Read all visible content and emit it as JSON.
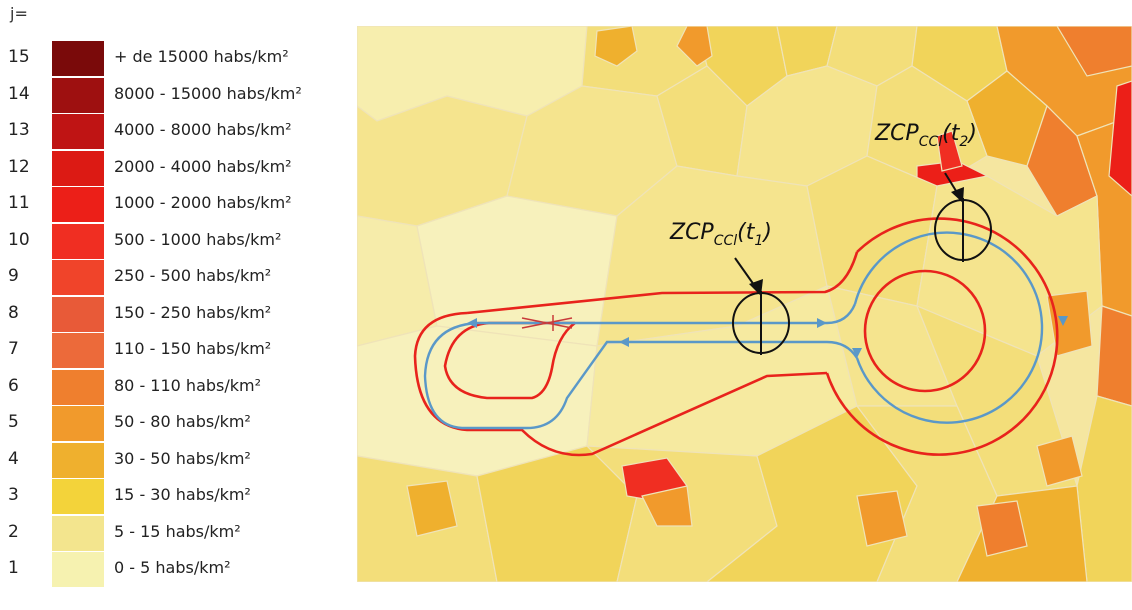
{
  "legend": {
    "title": "j=",
    "items": [
      {
        "j": "15",
        "label": "+ de 15000 habs/km²",
        "color": "#7a0a0a"
      },
      {
        "j": "14",
        "label": "8000 - 15000 habs/km²",
        "color": "#9e1010"
      },
      {
        "j": "13",
        "label": "4000 - 8000 habs/km²",
        "color": "#bf1414"
      },
      {
        "j": "12",
        "label": "2000 - 4000 habs/km²",
        "color": "#dc1a14"
      },
      {
        "j": "11",
        "label": "1000 - 2000 habs/km²",
        "color": "#ec1f18"
      },
      {
        "j": "10",
        "label": "500 - 1000 habs/km²",
        "color": "#f02e22"
      },
      {
        "j": "9",
        "label": "250 - 500 habs/km²",
        "color": "#f0442a"
      },
      {
        "j": "8",
        "label": "150 - 250 habs/km²",
        "color": "#e85a38"
      },
      {
        "j": "7",
        "label": "110 - 150 habs/km²",
        "color": "#ec6a3a"
      },
      {
        "j": "6",
        "label": "80 - 110 habs/km²",
        "color": "#ef7f2e"
      },
      {
        "j": "5",
        "label": "50 - 80 habs/km²",
        "color": "#f19a2c"
      },
      {
        "j": "4",
        "label": "30 - 50 habs/km²",
        "color": "#efb02e"
      },
      {
        "j": "3",
        "label": "15 - 30 habs/km²",
        "color": "#f3d33a"
      },
      {
        "j": "2",
        "label": "5 - 15 habs/km²",
        "color": "#f3e58e"
      },
      {
        "j": "1",
        "label": "0 - 5 habs/km²",
        "color": "#f6f2b0"
      }
    ]
  },
  "annotations": {
    "zcp_t1": {
      "base": "ZCP",
      "sub": "CCl",
      "arg": "t",
      "arg_sub": "1"
    },
    "zcp_t2": {
      "base": "ZCP",
      "sub": "CCl",
      "arg": "t",
      "arg_sub": "2"
    }
  },
  "colors": {
    "red_route": "#e8231c",
    "blue_route": "#5a98c8",
    "marker": "#111111"
  }
}
